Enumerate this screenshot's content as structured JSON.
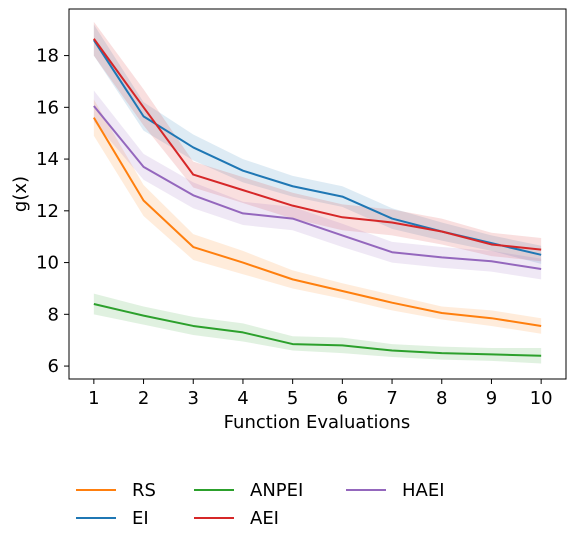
{
  "chart_data": {
    "type": "line",
    "title": "",
    "xlabel": "Function Evaluations",
    "ylabel": "g(x)",
    "xlim": [
      0.5,
      10.5
    ],
    "ylim": [
      5.5,
      19.8
    ],
    "x": [
      1,
      2,
      3,
      4,
      5,
      6,
      7,
      8,
      9,
      10
    ],
    "xticks": [
      1,
      2,
      3,
      4,
      5,
      6,
      7,
      8,
      9,
      10
    ],
    "yticks": [
      6,
      8,
      10,
      12,
      14,
      16,
      18
    ],
    "grid": false,
    "legend_placement": "bottom",
    "series": [
      {
        "name": "RS",
        "color": "#ff7f0e",
        "values": [
          15.6,
          12.4,
          10.6,
          10.0,
          9.35,
          8.9,
          8.45,
          8.05,
          7.85,
          7.55
        ],
        "lower": [
          14.9,
          11.8,
          10.1,
          9.55,
          9.0,
          8.6,
          8.15,
          7.8,
          7.55,
          7.25
        ],
        "upper": [
          16.3,
          13.0,
          11.1,
          10.45,
          9.7,
          9.2,
          8.75,
          8.3,
          8.15,
          7.85
        ]
      },
      {
        "name": "EI",
        "color": "#1f77b4",
        "values": [
          18.6,
          15.65,
          14.45,
          13.55,
          12.95,
          12.55,
          11.7,
          11.2,
          10.75,
          10.3
        ],
        "lower": [
          18.0,
          15.1,
          13.95,
          13.1,
          12.55,
          12.15,
          11.3,
          10.85,
          10.45,
          9.95
        ],
        "upper": [
          19.2,
          16.2,
          14.95,
          14.0,
          13.35,
          12.95,
          12.1,
          11.55,
          11.05,
          10.65
        ]
      },
      {
        "name": "ANPEI",
        "color": "#2ca02c",
        "values": [
          8.4,
          7.95,
          7.55,
          7.3,
          6.85,
          6.8,
          6.6,
          6.5,
          6.45,
          6.4
        ],
        "lower": [
          8.0,
          7.6,
          7.2,
          6.95,
          6.6,
          6.5,
          6.35,
          6.25,
          6.2,
          6.1
        ],
        "upper": [
          8.8,
          8.3,
          7.9,
          7.65,
          7.15,
          7.1,
          6.85,
          6.75,
          6.7,
          6.7
        ]
      },
      {
        "name": "AEI",
        "color": "#d62728",
        "values": [
          18.65,
          16.0,
          13.4,
          12.8,
          12.2,
          11.75,
          11.55,
          11.2,
          10.7,
          10.5
        ],
        "lower": [
          18.0,
          15.3,
          12.9,
          12.3,
          11.7,
          11.25,
          11.05,
          10.7,
          10.25,
          10.05
        ],
        "upper": [
          19.3,
          16.7,
          13.9,
          13.3,
          12.7,
          12.25,
          12.05,
          11.7,
          11.15,
          10.95
        ]
      },
      {
        "name": "HAEI",
        "color": "#9467bd",
        "values": [
          16.05,
          13.7,
          12.6,
          11.9,
          11.7,
          11.05,
          10.4,
          10.2,
          10.05,
          9.75
        ],
        "lower": [
          15.45,
          13.2,
          12.1,
          11.45,
          11.25,
          10.6,
          10.0,
          9.8,
          9.65,
          9.35
        ],
        "upper": [
          16.65,
          14.2,
          13.1,
          12.35,
          12.15,
          11.5,
          10.8,
          10.6,
          10.45,
          10.15
        ]
      }
    ]
  }
}
